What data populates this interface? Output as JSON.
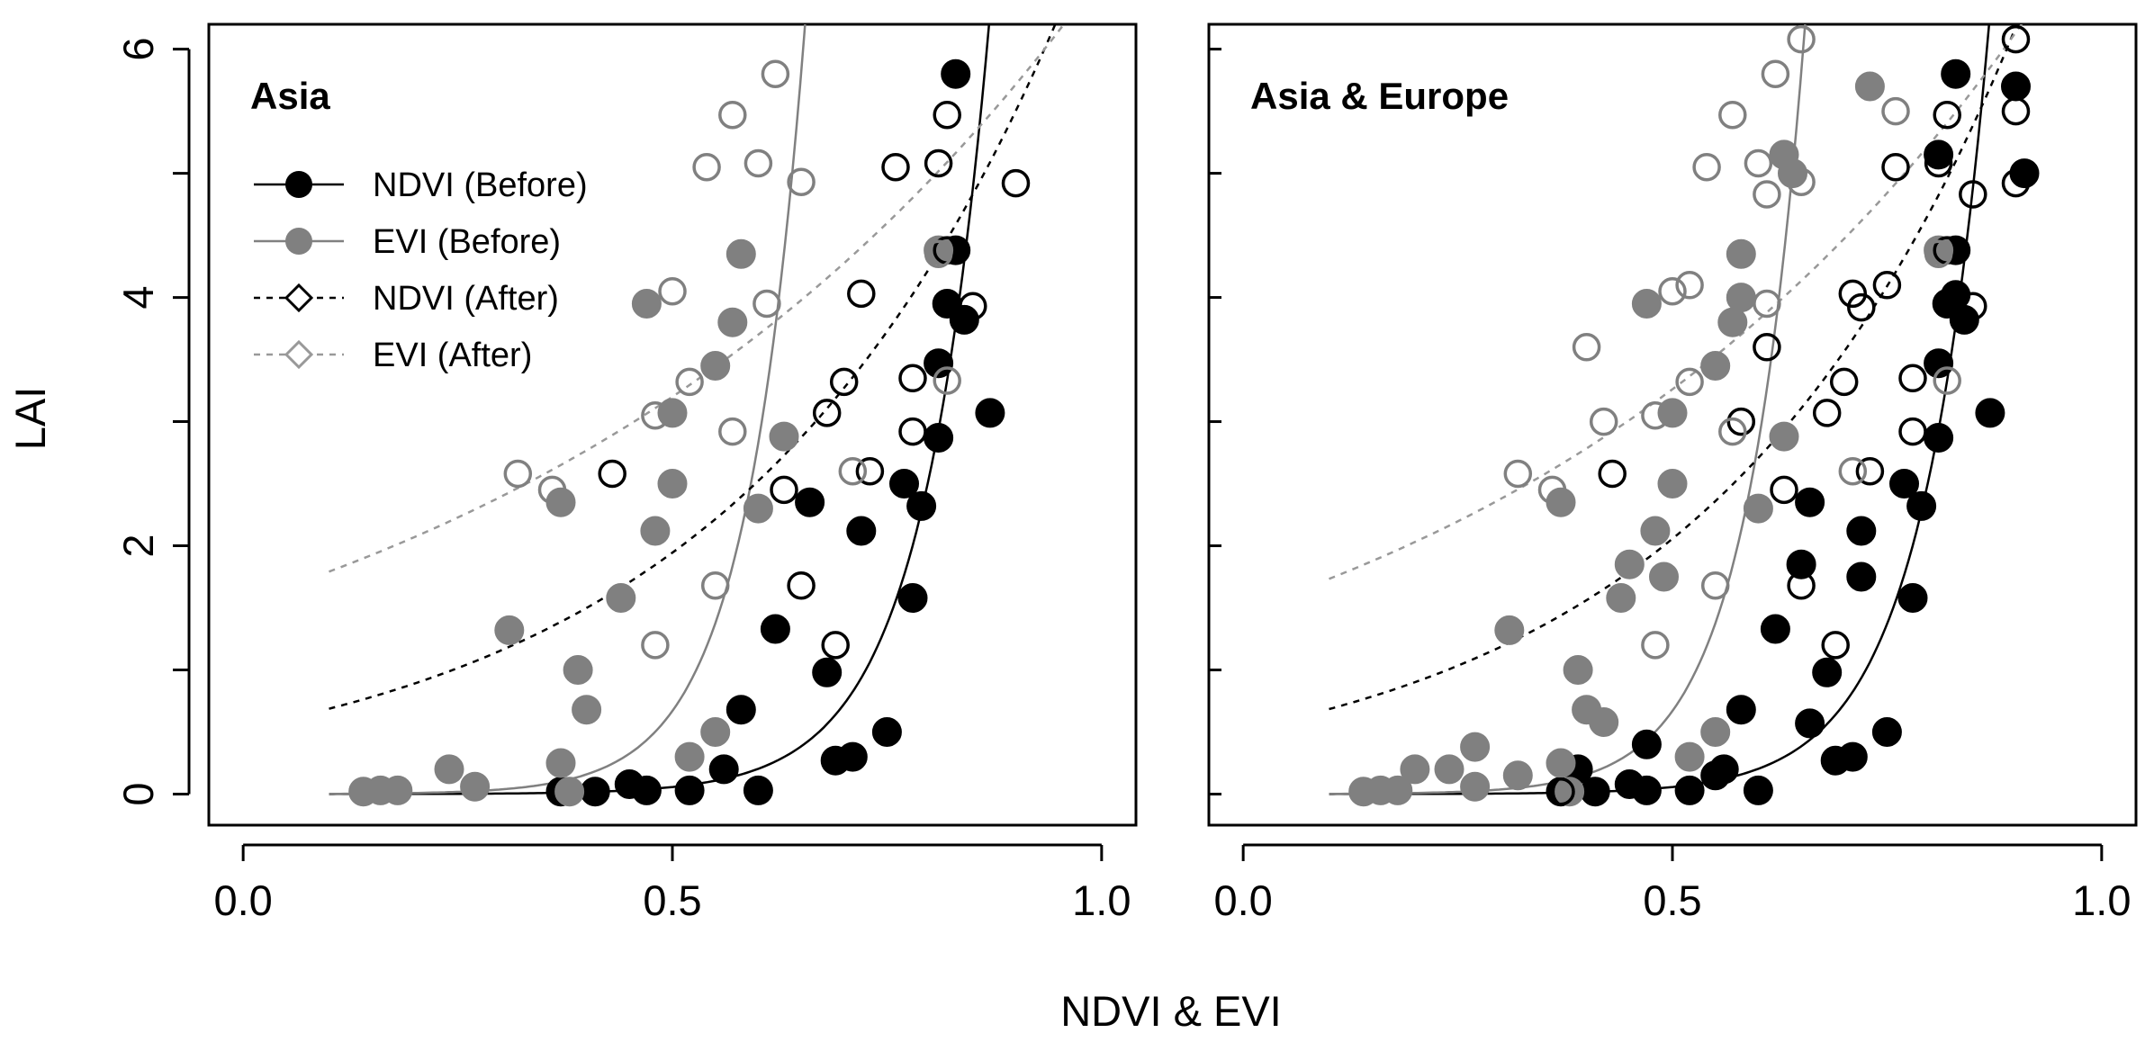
{
  "figure": {
    "ylabel": "LAI",
    "xlabel": "NDVI & EVI"
  },
  "colors": {
    "ndvi": "#000000",
    "evi": "#808080",
    "ndvi_after_line": "#000000",
    "evi_after_line": "#999999"
  },
  "legend": {
    "items": [
      {
        "label": "NDVI (Before)",
        "color": "#000000",
        "filled": true,
        "dashed": false
      },
      {
        "label": "EVI (Before)",
        "color": "#808080",
        "filled": true,
        "dashed": false
      },
      {
        "label": "NDVI (After)",
        "color": "#000000",
        "filled": false,
        "dashed": true
      },
      {
        "label": "EVI (After)",
        "color": "#999999",
        "filled": false,
        "dashed": true
      }
    ]
  },
  "chart_data": [
    {
      "type": "scatter",
      "title": "Asia",
      "xlabel": "NDVI & EVI",
      "ylabel": "LAI",
      "xlim": [
        -0.04,
        1.04
      ],
      "ylim": [
        -0.25,
        6.2
      ],
      "xticks": [
        "0.0",
        "0.5",
        "1.0"
      ],
      "yticks": [
        "0",
        "2",
        "4",
        "6"
      ],
      "curves": [
        {
          "name": "NDVI (Before)",
          "a": 0.0001,
          "b": 12.7,
          "x0": 0.1,
          "dashed": false
        },
        {
          "name": "EVI (Before)",
          "a": 0.0005,
          "b": 14.4,
          "x0": 0.1,
          "dashed": false
        },
        {
          "name": "NDVI (After)",
          "a": 0.53,
          "b": 2.6,
          "x0": 0.1,
          "dashed": true
        },
        {
          "name": "EVI (After)",
          "a": 1.55,
          "b": 1.45,
          "x0": 0.1,
          "dashed": true
        }
      ],
      "series": [
        {
          "name": "NDVI (Before)",
          "points": [
            [
              0.37,
              0.02
            ],
            [
              0.41,
              0.02
            ],
            [
              0.45,
              0.08
            ],
            [
              0.47,
              0.03
            ],
            [
              0.52,
              0.03
            ],
            [
              0.56,
              0.2
            ],
            [
              0.58,
              0.68
            ],
            [
              0.6,
              0.03
            ],
            [
              0.62,
              1.33
            ],
            [
              0.66,
              2.35
            ],
            [
              0.68,
              0.98
            ],
            [
              0.69,
              0.27
            ],
            [
              0.71,
              0.3
            ],
            [
              0.72,
              2.12
            ],
            [
              0.75,
              0.5
            ],
            [
              0.77,
              2.5
            ],
            [
              0.78,
              1.58
            ],
            [
              0.79,
              2.32
            ],
            [
              0.81,
              2.87
            ],
            [
              0.81,
              3.47
            ],
            [
              0.82,
              3.95
            ],
            [
              0.83,
              4.38
            ],
            [
              0.84,
              3.82
            ],
            [
              0.87,
              3.07
            ],
            [
              0.83,
              5.8
            ]
          ]
        },
        {
          "name": "EVI (Before)",
          "points": [
            [
              0.14,
              0.02
            ],
            [
              0.16,
              0.03
            ],
            [
              0.18,
              0.03
            ],
            [
              0.24,
              0.2
            ],
            [
              0.27,
              0.06
            ],
            [
              0.31,
              1.32
            ],
            [
              0.37,
              2.35
            ],
            [
              0.37,
              0.25
            ],
            [
              0.38,
              0.02
            ],
            [
              0.39,
              1.0
            ],
            [
              0.4,
              0.68
            ],
            [
              0.44,
              1.58
            ],
            [
              0.47,
              3.95
            ],
            [
              0.48,
              2.12
            ],
            [
              0.5,
              2.5
            ],
            [
              0.5,
              3.07
            ],
            [
              0.52,
              0.3
            ],
            [
              0.55,
              3.45
            ],
            [
              0.55,
              0.5
            ],
            [
              0.57,
              3.8
            ],
            [
              0.58,
              4.35
            ],
            [
              0.6,
              2.3
            ],
            [
              0.63,
              2.88
            ],
            [
              0.81,
              4.38
            ]
          ]
        },
        {
          "name": "NDVI (After)",
          "points": [
            [
              0.43,
              2.58
            ],
            [
              0.63,
              2.45
            ],
            [
              0.65,
              1.68
            ],
            [
              0.68,
              3.07
            ],
            [
              0.69,
              1.2
            ],
            [
              0.7,
              3.32
            ],
            [
              0.72,
              4.03
            ],
            [
              0.73,
              2.6
            ],
            [
              0.76,
              5.05
            ],
            [
              0.78,
              2.92
            ],
            [
              0.78,
              3.35
            ],
            [
              0.81,
              5.08
            ],
            [
              0.82,
              5.47
            ],
            [
              0.82,
              4.38
            ],
            [
              0.85,
              3.93
            ],
            [
              0.9,
              4.92
            ]
          ]
        },
        {
          "name": "EVI (After)",
          "points": [
            [
              0.32,
              2.58
            ],
            [
              0.36,
              2.45
            ],
            [
              0.48,
              1.2
            ],
            [
              0.48,
              3.05
            ],
            [
              0.5,
              4.05
            ],
            [
              0.52,
              3.32
            ],
            [
              0.54,
              5.05
            ],
            [
              0.55,
              1.68
            ],
            [
              0.57,
              2.92
            ],
            [
              0.57,
              5.47
            ],
            [
              0.6,
              5.08
            ],
            [
              0.61,
              3.95
            ],
            [
              0.62,
              5.8
            ],
            [
              0.65,
              4.93
            ],
            [
              0.71,
              2.6
            ],
            [
              0.81,
              4.35
            ],
            [
              0.82,
              3.33
            ]
          ]
        }
      ]
    },
    {
      "type": "scatter",
      "title": "Asia & Europe",
      "xlabel": "NDVI & EVI",
      "ylabel": "LAI",
      "xlim": [
        -0.04,
        1.04
      ],
      "ylim": [
        -0.25,
        6.2
      ],
      "xticks": [
        "0.0",
        "0.5",
        "1.0"
      ],
      "yticks": [],
      "curves": [
        {
          "name": "NDVI (Before)",
          "a": 0.0001,
          "b": 12.7,
          "x0": 0.1,
          "dashed": false
        },
        {
          "name": "EVI (Before)",
          "a": 0.0005,
          "b": 14.4,
          "x0": 0.1,
          "dashed": false
        },
        {
          "name": "NDVI (After)",
          "a": 0.52,
          "b": 2.75,
          "x0": 0.1,
          "dashed": true
        },
        {
          "name": "EVI (After)",
          "a": 1.48,
          "b": 1.58,
          "x0": 0.1,
          "dashed": true
        }
      ],
      "series": [
        {
          "name": "NDVI (Before)",
          "points": [
            [
              0.37,
              0.02
            ],
            [
              0.39,
              0.2
            ],
            [
              0.41,
              0.02
            ],
            [
              0.45,
              0.08
            ],
            [
              0.47,
              0.03
            ],
            [
              0.47,
              0.4
            ],
            [
              0.52,
              0.03
            ],
            [
              0.55,
              0.15
            ],
            [
              0.56,
              0.2
            ],
            [
              0.58,
              0.68
            ],
            [
              0.6,
              0.03
            ],
            [
              0.62,
              1.33
            ],
            [
              0.65,
              1.85
            ],
            [
              0.66,
              2.35
            ],
            [
              0.66,
              0.57
            ],
            [
              0.68,
              0.98
            ],
            [
              0.69,
              0.27
            ],
            [
              0.71,
              0.3
            ],
            [
              0.72,
              1.75
            ],
            [
              0.72,
              2.12
            ],
            [
              0.75,
              0.5
            ],
            [
              0.77,
              2.5
            ],
            [
              0.78,
              1.58
            ],
            [
              0.79,
              2.32
            ],
            [
              0.81,
              2.87
            ],
            [
              0.81,
              3.47
            ],
            [
              0.82,
              3.95
            ],
            [
              0.81,
              5.15
            ],
            [
              0.83,
              4.02
            ],
            [
              0.83,
              4.38
            ],
            [
              0.84,
              3.82
            ],
            [
              0.87,
              3.07
            ],
            [
              0.83,
              5.8
            ],
            [
              0.9,
              5.7
            ],
            [
              0.91,
              5.0
            ]
          ]
        },
        {
          "name": "EVI (Before)",
          "points": [
            [
              0.14,
              0.02
            ],
            [
              0.16,
              0.03
            ],
            [
              0.18,
              0.03
            ],
            [
              0.2,
              0.2
            ],
            [
              0.24,
              0.2
            ],
            [
              0.27,
              0.06
            ],
            [
              0.27,
              0.38
            ],
            [
              0.31,
              1.32
            ],
            [
              0.32,
              0.15
            ],
            [
              0.37,
              2.35
            ],
            [
              0.37,
              0.25
            ],
            [
              0.38,
              0.02
            ],
            [
              0.39,
              1.0
            ],
            [
              0.4,
              0.68
            ],
            [
              0.42,
              0.58
            ],
            [
              0.44,
              1.58
            ],
            [
              0.45,
              1.85
            ],
            [
              0.47,
              3.95
            ],
            [
              0.48,
              2.12
            ],
            [
              0.49,
              1.75
            ],
            [
              0.5,
              2.5
            ],
            [
              0.5,
              3.07
            ],
            [
              0.52,
              0.3
            ],
            [
              0.55,
              3.45
            ],
            [
              0.55,
              0.5
            ],
            [
              0.57,
              3.8
            ],
            [
              0.58,
              4.35
            ],
            [
              0.58,
              4.0
            ],
            [
              0.6,
              2.3
            ],
            [
              0.63,
              2.88
            ],
            [
              0.63,
              5.15
            ],
            [
              0.64,
              5.0
            ],
            [
              0.73,
              5.7
            ],
            [
              0.81,
              4.38
            ]
          ]
        },
        {
          "name": "NDVI (After)",
          "points": [
            [
              0.37,
              0.02
            ],
            [
              0.43,
              2.58
            ],
            [
              0.58,
              3.0
            ],
            [
              0.61,
              3.6
            ],
            [
              0.63,
              2.45
            ],
            [
              0.65,
              1.68
            ],
            [
              0.68,
              3.07
            ],
            [
              0.69,
              1.2
            ],
            [
              0.7,
              3.32
            ],
            [
              0.71,
              4.03
            ],
            [
              0.72,
              3.92
            ],
            [
              0.73,
              2.6
            ],
            [
              0.75,
              4.1
            ],
            [
              0.76,
              5.05
            ],
            [
              0.78,
              2.92
            ],
            [
              0.78,
              3.35
            ],
            [
              0.81,
              5.08
            ],
            [
              0.82,
              5.47
            ],
            [
              0.82,
              4.38
            ],
            [
              0.85,
              3.93
            ],
            [
              0.85,
              4.83
            ],
            [
              0.9,
              4.92
            ],
            [
              0.9,
              5.5
            ],
            [
              0.9,
              6.08
            ]
          ]
        },
        {
          "name": "EVI (After)",
          "points": [
            [
              0.32,
              2.58
            ],
            [
              0.36,
              2.45
            ],
            [
              0.4,
              3.6
            ],
            [
              0.42,
              3.0
            ],
            [
              0.48,
              1.2
            ],
            [
              0.48,
              3.05
            ],
            [
              0.5,
              4.05
            ],
            [
              0.52,
              3.32
            ],
            [
              0.52,
              4.1
            ],
            [
              0.54,
              5.05
            ],
            [
              0.55,
              1.68
            ],
            [
              0.57,
              2.92
            ],
            [
              0.57,
              5.47
            ],
            [
              0.6,
              5.08
            ],
            [
              0.61,
              3.95
            ],
            [
              0.61,
              4.83
            ],
            [
              0.62,
              5.8
            ],
            [
              0.65,
              4.93
            ],
            [
              0.65,
              6.08
            ],
            [
              0.71,
              2.6
            ],
            [
              0.76,
              5.5
            ],
            [
              0.81,
              4.35
            ],
            [
              0.82,
              3.33
            ]
          ]
        }
      ]
    }
  ]
}
